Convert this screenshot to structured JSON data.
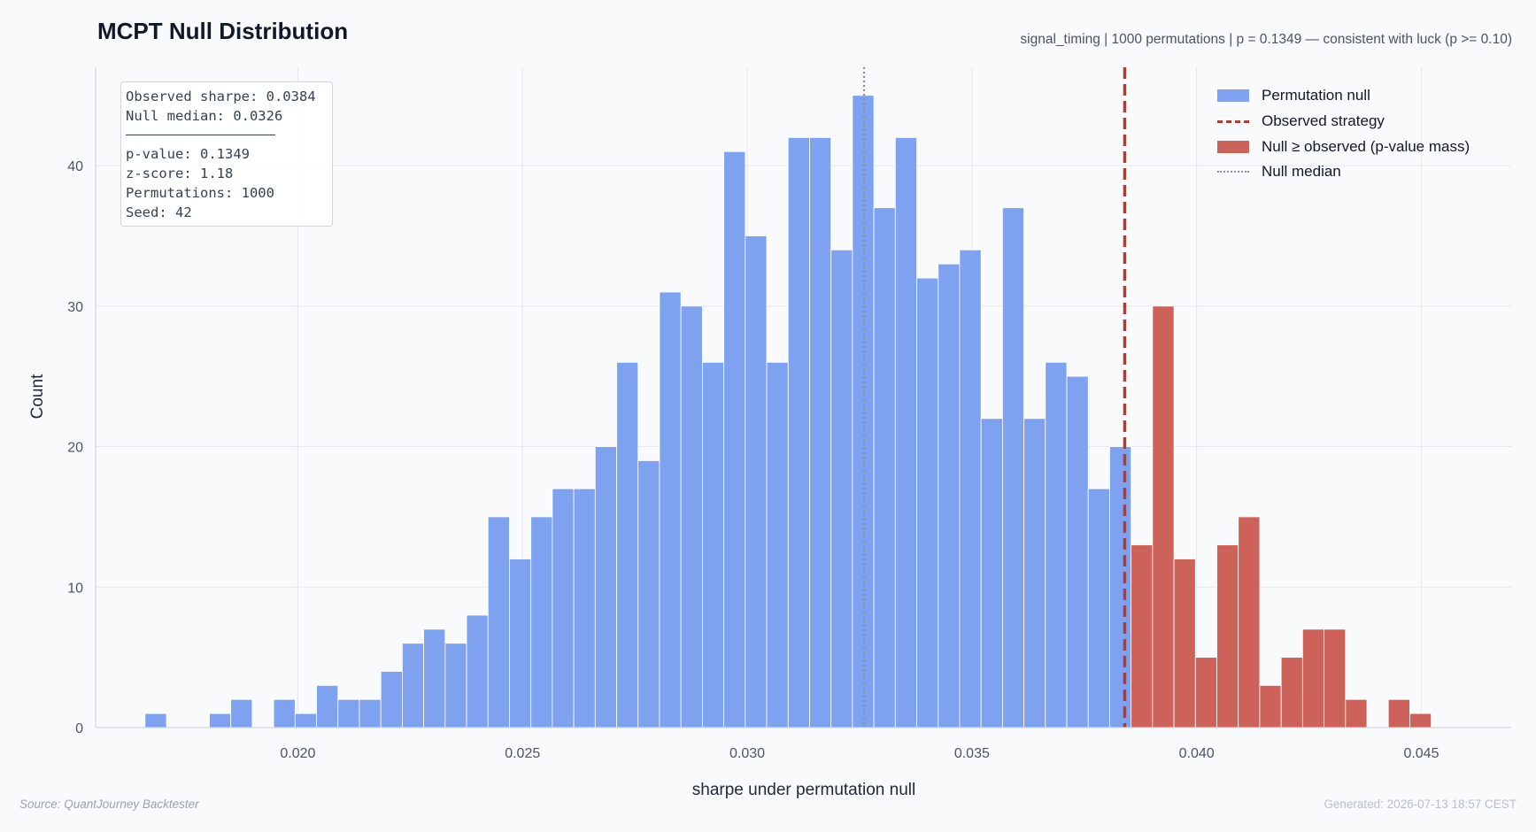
{
  "header": {
    "title": "MCPT Null Distribution",
    "subtitle": "signal_timing | 1000 permutations | p = 0.1349 — consistent with luck (p >= 0.10)"
  },
  "footer": {
    "source": "Source: QuantJourney Backtester",
    "generated": "Generated: 2026-07-13 18:57 CEST"
  },
  "stats_box": {
    "line1": "Observed sharpe: 0.0384",
    "line2": "Null median: 0.0326",
    "line3": "p-value: 0.1349",
    "line4": "z-score: 1.18",
    "line5": "Permutations: 1000",
    "line6": "Seed: 42"
  },
  "legend": {
    "null_label": "Permutation null",
    "observed_label": "Observed strategy",
    "mass_label": "Null ≥ observed (p-value mass)",
    "median_label": "Null median"
  },
  "colors": {
    "null_bar": "#7ea2f0",
    "mass_bar": "#cd625a",
    "observed_line": "#b53a30",
    "median_line": "#8a8f98",
    "grid": "#e5e7eb"
  },
  "chart_data": {
    "type": "bar",
    "title": "MCPT Null Distribution",
    "xlabel": "sharpe under permutation null",
    "ylabel": "Count",
    "xlim": [
      0.0155,
      0.047
    ],
    "ylim": [
      0,
      47
    ],
    "xticks": [
      0.02,
      0.025,
      0.03,
      0.035,
      0.04,
      0.045
    ],
    "xtick_labels": [
      "0.020",
      "0.025",
      "0.030",
      "0.035",
      "0.040",
      "0.045"
    ],
    "yticks": [
      0,
      10,
      20,
      30,
      40
    ],
    "ytick_labels": [
      "0",
      "10",
      "20",
      "30",
      "40"
    ],
    "grid": true,
    "legend_position": "top-right",
    "bin_start": 0.0166,
    "bin_width": 0.000477,
    "observed": 0.0384,
    "null_median": 0.0326,
    "series": [
      {
        "name": "Permutation null",
        "values": [
          1,
          0,
          0,
          1,
          2,
          0,
          2,
          1,
          3,
          2,
          2,
          4,
          6,
          7,
          6,
          8,
          15,
          12,
          15,
          17,
          17,
          20,
          26,
          19,
          31,
          30,
          26,
          41,
          35,
          26,
          42,
          42,
          34,
          45,
          37,
          42,
          32,
          33,
          34,
          22,
          37,
          22,
          26,
          25,
          17,
          20,
          0,
          0,
          0,
          0,
          0,
          0,
          0,
          0,
          0,
          0,
          0,
          0,
          0,
          0,
          0,
          0,
          0,
          0
        ]
      },
      {
        "name": "Null ≥ observed (p-value mass)",
        "values": [
          0,
          0,
          0,
          0,
          0,
          0,
          0,
          0,
          0,
          0,
          0,
          0,
          0,
          0,
          0,
          0,
          0,
          0,
          0,
          0,
          0,
          0,
          0,
          0,
          0,
          0,
          0,
          0,
          0,
          0,
          0,
          0,
          0,
          0,
          0,
          0,
          0,
          0,
          0,
          0,
          0,
          0,
          0,
          0,
          0,
          0,
          13,
          30,
          12,
          5,
          13,
          15,
          3,
          5,
          7,
          7,
          2,
          0,
          2,
          1,
          0,
          0,
          0,
          0
        ]
      }
    ]
  }
}
